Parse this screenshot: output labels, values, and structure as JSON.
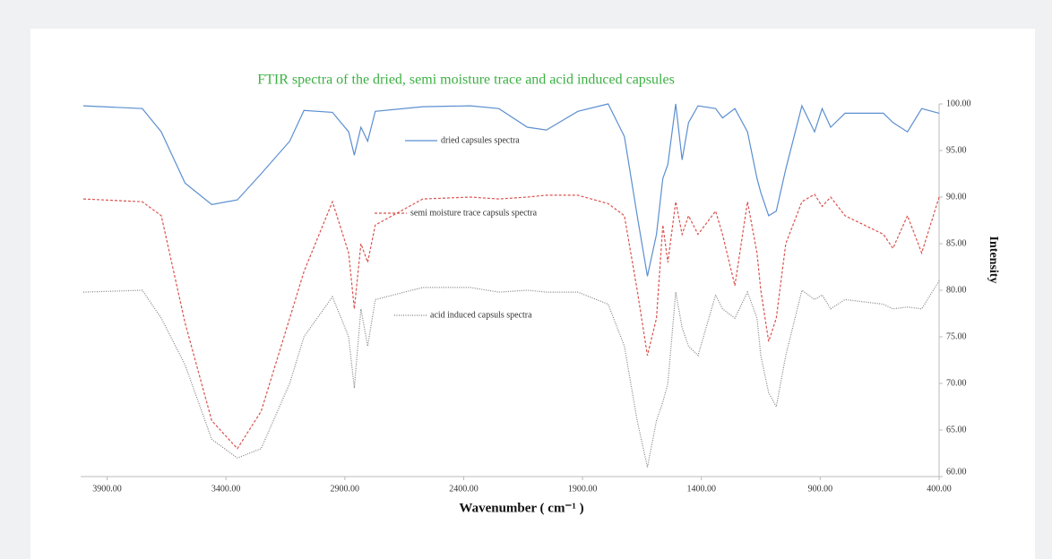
{
  "chart_data": {
    "type": "line",
    "title": "FTIR spectra of the dried, semi moisture trace and acid induced capsules",
    "xlabel": "Wavenumber ( cm⁻¹ )",
    "ylabel": "Intensity",
    "x": [
      4000,
      3752,
      3672,
      3572,
      3460,
      3352,
      3252,
      3132,
      3072,
      2952,
      2884,
      2860,
      2832,
      2804,
      2772,
      2572,
      2372,
      2252,
      2132,
      2052,
      1920,
      1792,
      1724,
      1670,
      1627,
      1589,
      1562,
      1541,
      1508,
      1481,
      1454,
      1414,
      1340,
      1311,
      1259,
      1206,
      1166,
      1150,
      1117,
      1085,
      1045,
      977,
      924,
      892,
      856,
      796,
      634,
      594,
      533,
      473,
      400
    ],
    "series": [
      {
        "name": "dried capsules spectra",
        "color": "#5b8fd0",
        "dash": "none",
        "values": [
          99.8,
          99.5,
          97,
          91.5,
          89.2,
          89.7,
          92.5,
          96,
          99.3,
          99.1,
          97,
          94.5,
          97.5,
          96,
          99.2,
          99.7,
          99.8,
          99.5,
          97.5,
          97.2,
          99.2,
          100,
          96.5,
          88,
          81.5,
          86,
          92,
          93.5,
          100,
          94,
          98,
          99.8,
          99.5,
          98.5,
          99.5,
          97,
          92,
          90.5,
          88,
          88.5,
          93,
          99.8,
          97,
          99.5,
          97.5,
          99,
          99,
          98,
          97,
          99.5,
          99
        ]
      },
      {
        "name": "semi moisture trace capsuls spectra",
        "color": "#d9534f",
        "dash": "3,2",
        "values": [
          89.8,
          89.5,
          88,
          76.5,
          66,
          63,
          67,
          77,
          82,
          89.5,
          84,
          78,
          85,
          83,
          87,
          89.8,
          90,
          89.8,
          90,
          90.2,
          90.2,
          89.3,
          88,
          80,
          73,
          77,
          87,
          83,
          89.5,
          86,
          88,
          86,
          88.5,
          86,
          80.5,
          89.5,
          84,
          80,
          74.5,
          77,
          85,
          89.5,
          90.3,
          89,
          90,
          88,
          86,
          84.5,
          88,
          84,
          90
        ]
      },
      {
        "name": "acid induced capsuls spectra",
        "color": "#808080",
        "dash": "1,1.5",
        "values": [
          79.8,
          80,
          77,
          72,
          64,
          62,
          63,
          70,
          75,
          79.3,
          75,
          69.5,
          78,
          74,
          79,
          80.3,
          80.3,
          79.8,
          80,
          79.8,
          79.8,
          78.5,
          74,
          66,
          61,
          66,
          68,
          70,
          79.8,
          76,
          74,
          73,
          79.5,
          78,
          77,
          79.8,
          77,
          73,
          69,
          67.5,
          73,
          80,
          79,
          79.5,
          78,
          79,
          78.5,
          78,
          78.2,
          78,
          81
        ]
      }
    ],
    "xlim": [
      4000,
      400
    ],
    "xticks": [
      {
        "value": 3900,
        "label": "3900.00"
      },
      {
        "value": 3400,
        "label": "3400.00"
      },
      {
        "value": 2900,
        "label": "2900.00"
      },
      {
        "value": 2400,
        "label": "2400.00"
      },
      {
        "value": 1900,
        "label": "1900.00"
      },
      {
        "value": 1400,
        "label": "1400.00"
      },
      {
        "value": 900,
        "label": "900.00"
      },
      {
        "value": 400,
        "label": "400.00"
      }
    ],
    "ylim": [
      60,
      100
    ],
    "yticks": [
      {
        "value": 60,
        "label": "60.00"
      },
      {
        "value": 65,
        "label": "65.00"
      },
      {
        "value": 70,
        "label": "70.00"
      },
      {
        "value": 75,
        "label": "75.00"
      },
      {
        "value": 80,
        "label": "80.00"
      },
      {
        "value": 85,
        "label": "85.00"
      },
      {
        "value": 90,
        "label": "90.00"
      },
      {
        "value": 95,
        "label": "95.00"
      },
      {
        "value": 100,
        "label": "100.00"
      }
    ],
    "grid": false
  }
}
